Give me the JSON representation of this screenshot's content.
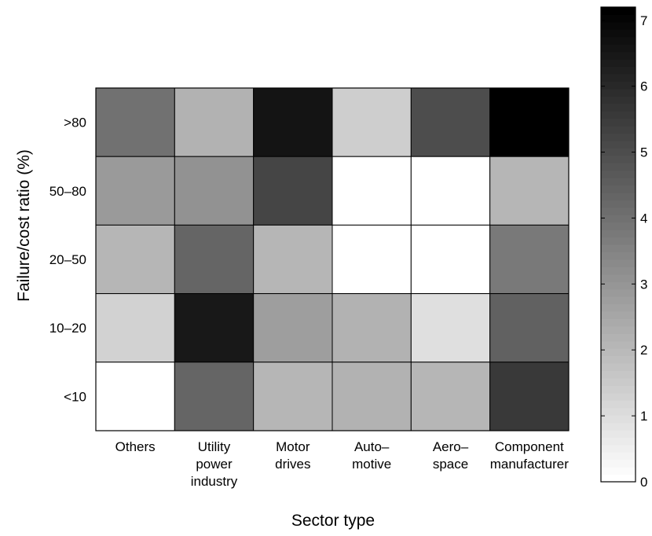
{
  "chart_data": {
    "type": "heatmap",
    "xlabel": "Sector type",
    "ylabel": "Failure/cost ratio (%)",
    "x_categories": [
      [
        "Others"
      ],
      [
        "Utility",
        "power",
        "industry"
      ],
      [
        "Motor",
        "drives"
      ],
      [
        "Auto–",
        "motive"
      ],
      [
        "Aero–",
        "space"
      ],
      [
        "Component",
        "manufacturer"
      ]
    ],
    "y_categories": [
      ">80",
      "50–80",
      "20–50",
      "10–20",
      "<10"
    ],
    "values": [
      [
        4.0,
        2.2,
        6.6,
        1.4,
        5.0,
        7.2
      ],
      [
        2.9,
        3.1,
        5.2,
        0.0,
        0.0,
        2.0
      ],
      [
        2.1,
        4.3,
        2.1,
        0.0,
        0.0,
        3.8
      ],
      [
        1.3,
        6.5,
        2.7,
        2.2,
        0.9,
        4.4
      ],
      [
        0.0,
        4.3,
        2.1,
        2.2,
        2.1,
        5.6
      ]
    ],
    "colorbar": {
      "min": 0,
      "max": 7.2,
      "ticks": [
        "0",
        "1",
        "2",
        "3",
        "4",
        "5",
        "6",
        "7"
      ],
      "colormap": "gray-reversed",
      "levels": 64
    }
  }
}
